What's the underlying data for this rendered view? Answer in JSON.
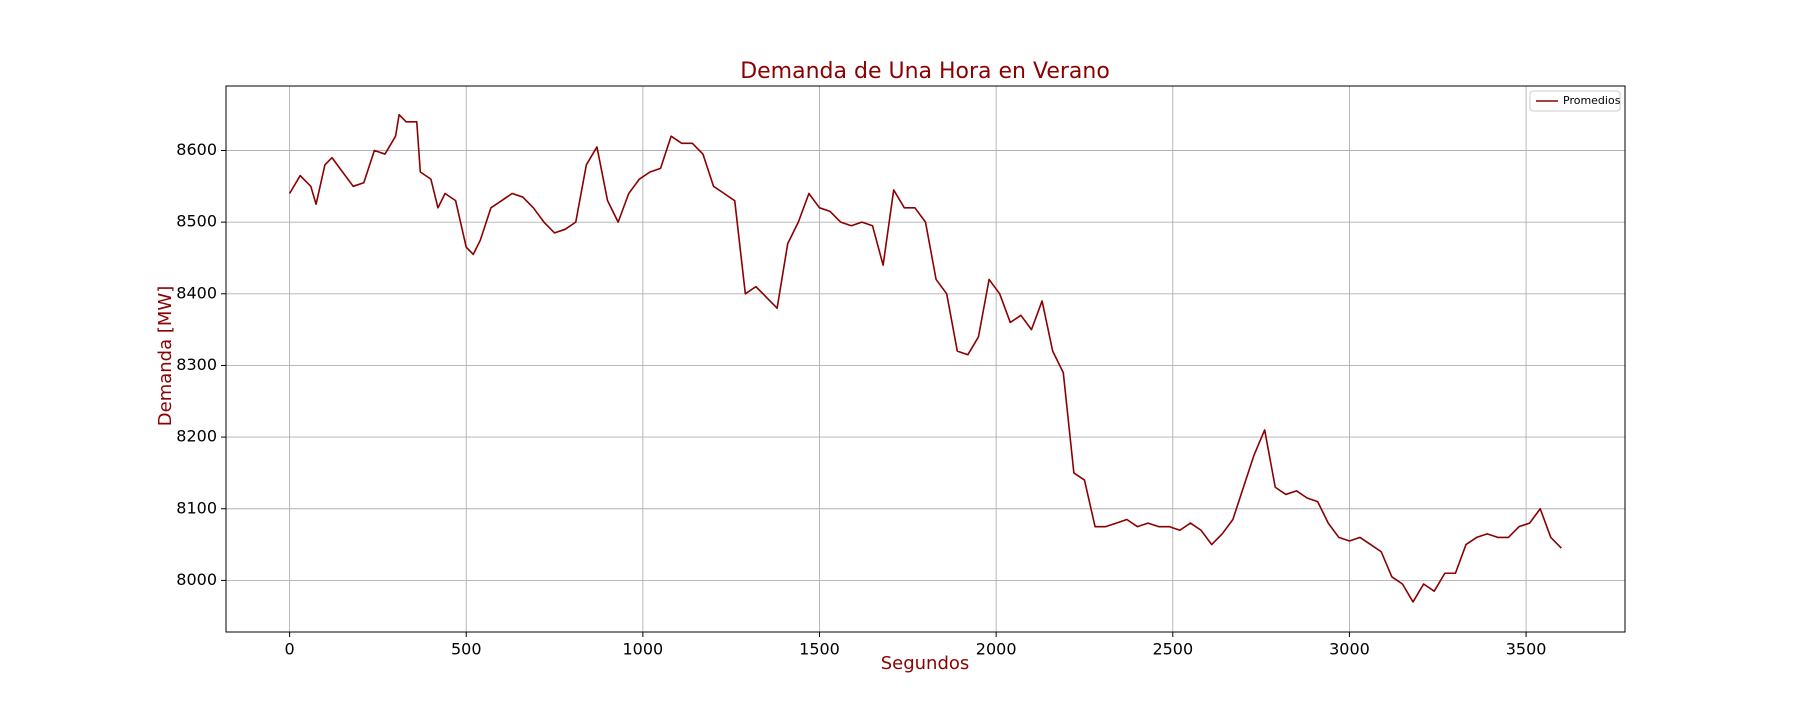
{
  "chart_data": {
    "type": "line",
    "title": "Demanda de Una Hora en Verano",
    "xlabel": "Segundos",
    "ylabel": "Demanda [MW]",
    "x": [
      0,
      30,
      60,
      75,
      100,
      120,
      150,
      180,
      210,
      240,
      270,
      300,
      310,
      330,
      360,
      370,
      400,
      420,
      440,
      470,
      500,
      520,
      540,
      570,
      600,
      630,
      660,
      690,
      720,
      750,
      780,
      810,
      840,
      870,
      900,
      930,
      960,
      990,
      1020,
      1050,
      1080,
      1110,
      1140,
      1170,
      1200,
      1230,
      1260,
      1290,
      1320,
      1350,
      1380,
      1410,
      1440,
      1470,
      1500,
      1530,
      1560,
      1590,
      1620,
      1650,
      1680,
      1710,
      1740,
      1770,
      1800,
      1830,
      1860,
      1890,
      1920,
      1950,
      1980,
      2010,
      2040,
      2070,
      2100,
      2130,
      2160,
      2190,
      2220,
      2250,
      2280,
      2310,
      2340,
      2370,
      2400,
      2430,
      2460,
      2490,
      2520,
      2550,
      2580,
      2610,
      2640,
      2670,
      2700,
      2730,
      2760,
      2790,
      2820,
      2850,
      2880,
      2910,
      2940,
      2970,
      3000,
      3030,
      3060,
      3090,
      3120,
      3150,
      3180,
      3210,
      3240,
      3270,
      3300,
      3330,
      3360,
      3390,
      3420,
      3450,
      3480,
      3510,
      3540,
      3570,
      3600
    ],
    "series": [
      {
        "name": "Promedios",
        "color": "#8b0000",
        "values": [
          8540,
          8565,
          8550,
          8525,
          8580,
          8590,
          8570,
          8550,
          8555,
          8600,
          8595,
          8620,
          8650,
          8640,
          8640,
          8570,
          8560,
          8520,
          8540,
          8530,
          8465,
          8455,
          8475,
          8520,
          8530,
          8540,
          8535,
          8520,
          8500,
          8485,
          8490,
          8500,
          8580,
          8605,
          8530,
          8500,
          8540,
          8560,
          8570,
          8575,
          8620,
          8610,
          8610,
          8595,
          8550,
          8540,
          8530,
          8400,
          8410,
          8395,
          8380,
          8470,
          8500,
          8540,
          8520,
          8515,
          8500,
          8495,
          8500,
          8495,
          8440,
          8545,
          8520,
          8520,
          8500,
          8420,
          8400,
          8320,
          8315,
          8340,
          8420,
          8400,
          8360,
          8370,
          8350,
          8390,
          8320,
          8290,
          8150,
          8140,
          8075,
          8075,
          8080,
          8085,
          8075,
          8080,
          8075,
          8075,
          8070,
          8080,
          8070,
          8050,
          8065,
          8085,
          8130,
          8175,
          8210,
          8130,
          8120,
          8125,
          8115,
          8110,
          8080,
          8060,
          8055,
          8060,
          8050,
          8040,
          8005,
          7995,
          7970,
          7995,
          7985,
          8010,
          8010,
          8050,
          8060,
          8065,
          8060,
          8060,
          8075,
          8080,
          8100,
          8060,
          8045
        ]
      }
    ],
    "xlim": [
      -180,
      3780
    ],
    "xticks": [
      0,
      500,
      1000,
      1500,
      2000,
      2500,
      3000,
      3500
    ],
    "ylim": [
      7928,
      8690
    ],
    "yticks": [
      8000,
      8100,
      8200,
      8300,
      8400,
      8500,
      8600
    ],
    "grid": true,
    "legend": "upper right"
  }
}
